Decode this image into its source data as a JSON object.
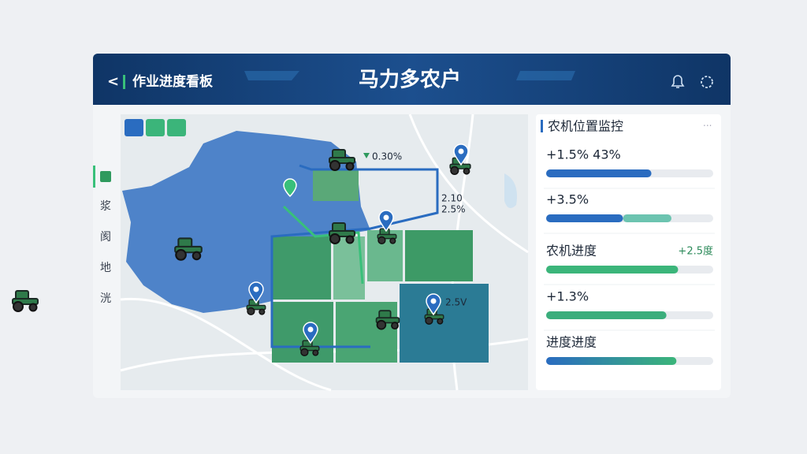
{
  "header": {
    "back": "<",
    "section": "作业进度看板",
    "title": "马力多农户"
  },
  "side_nav": [
    "浆",
    "阂",
    "地",
    "洸"
  ],
  "map": {
    "labels": [
      "0.30%",
      "2.10",
      "2.5%",
      "2.5V"
    ]
  },
  "panel": {
    "title": "农机位置监控",
    "rows": [
      {
        "label": "+1.5% 43%",
        "progress": [
          63
        ]
      },
      {
        "label": "+3.5%",
        "progress": [
          46,
          29
        ]
      },
      {
        "label": "农机进度",
        "note": "+2.5度",
        "progress": [
          79
        ]
      },
      {
        "label": "+1.3%",
        "progress": [
          72
        ]
      },
      {
        "label": "进度进度",
        "progress": [
          78
        ]
      }
    ]
  }
}
